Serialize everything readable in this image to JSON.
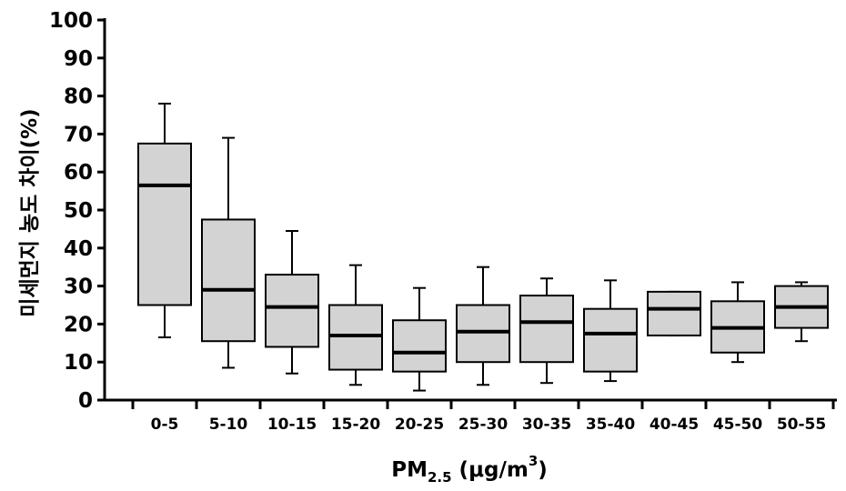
{
  "chart_data": {
    "type": "box",
    "ylabel": "미세먼지 농도 차이(%)",
    "xlabel": {
      "main": "PM",
      "sub": "2.5",
      "unit_open": " (μg/m",
      "sup": "3",
      "unit_close": ")"
    },
    "ylim": [
      0,
      100
    ],
    "yticks": [
      0,
      10,
      20,
      30,
      40,
      50,
      60,
      70,
      80,
      90,
      100
    ],
    "categories": [
      "0-5",
      "5-10",
      "10-15",
      "15-20",
      "20-25",
      "25-30",
      "30-35",
      "35-40",
      "40-45",
      "45-50",
      "50-55"
    ],
    "boxes": [
      {
        "min": 16.5,
        "q1": 25,
        "median": 56.5,
        "q3": 67.5,
        "max": 78
      },
      {
        "min": 8.5,
        "q1": 15.5,
        "median": 29,
        "q3": 47.5,
        "max": 69
      },
      {
        "min": 7,
        "q1": 14,
        "median": 24.5,
        "q3": 33,
        "max": 44.5
      },
      {
        "min": 4,
        "q1": 8,
        "median": 17,
        "q3": 25,
        "max": 35.5
      },
      {
        "min": 2.5,
        "q1": 7.5,
        "median": 12.5,
        "q3": 21,
        "max": 29.5
      },
      {
        "min": 4,
        "q1": 10,
        "median": 18,
        "q3": 25,
        "max": 35
      },
      {
        "min": 4.5,
        "q1": 10,
        "median": 20.5,
        "q3": 27.5,
        "max": 32
      },
      {
        "min": 5,
        "q1": 7.5,
        "median": 17.5,
        "q3": 24,
        "max": 31.5
      },
      {
        "min": 17,
        "q1": 17,
        "median": 24,
        "q3": 28.5,
        "max": 28.5
      },
      {
        "min": 10,
        "q1": 12.5,
        "median": 19,
        "q3": 26,
        "max": 31
      },
      {
        "min": 15.5,
        "q1": 19,
        "median": 24.5,
        "q3": 30,
        "max": 31
      }
    ],
    "box_color": "#d3d3d3",
    "stroke_color": "#000000"
  }
}
